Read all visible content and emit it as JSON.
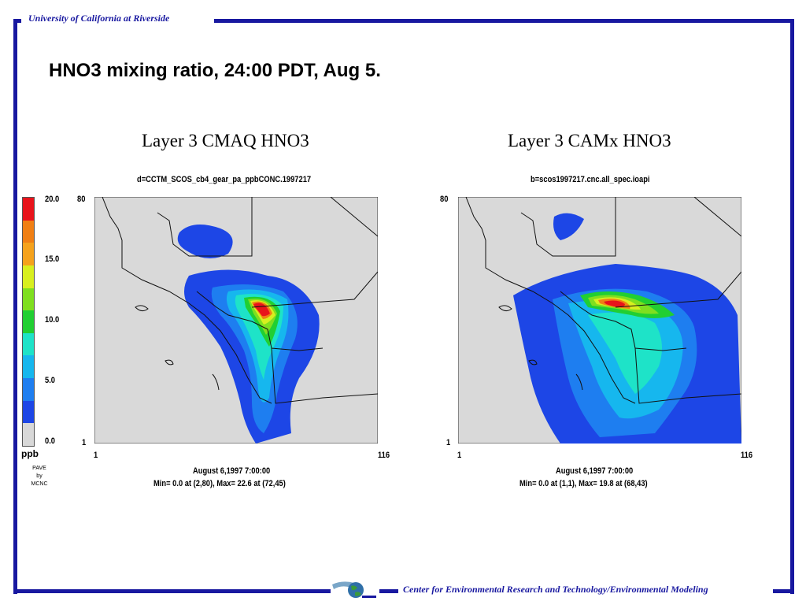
{
  "header": {
    "organization": "University of California at Riverside"
  },
  "footer": {
    "center_name": "Center for Environmental Research and Technology/Environmental Modeling"
  },
  "slide_title": "HNO3 mixing ratio, 24:00 PDT, Aug 5.",
  "colorbar": {
    "unit": "ppb",
    "ticks": [
      "20.0",
      "15.0",
      "10.0",
      "5.0",
      "0.0"
    ],
    "colors": [
      "#e8131b",
      "#f07f14",
      "#f5a21c",
      "#d8ef1f",
      "#7fdf1f",
      "#21cf32",
      "#1ee3c8",
      "#16b7ee",
      "#1e7ef0",
      "#1d46e6",
      "#d8d8d8"
    ],
    "credit": [
      "PAVE",
      "by",
      "MCNC"
    ]
  },
  "panels": [
    {
      "title": "Layer 3  CMAQ  HNO3",
      "file": "d=CCTM_SCOS_cb4_gear_pa_ppbCONC.1997217",
      "y_top": "80",
      "y_bottom": "1",
      "x_left": "1",
      "x_right": "116",
      "date": "August 6,1997 7:00:00",
      "stats": "Min=    0.0 at (2,80), Max=    22.6 at (72,45)"
    },
    {
      "title": "Layer 3  CAMx  HNO3",
      "file": "b=scos1997217.cnc.all_spec.ioapi",
      "y_top": "80",
      "y_bottom": "1",
      "x_left": "1",
      "x_right": "116",
      "date": "August 6,1997 7:00:00",
      "stats": "Min=    0.0 at (1,1), Max=    19.8 at (68,43)"
    }
  ]
}
